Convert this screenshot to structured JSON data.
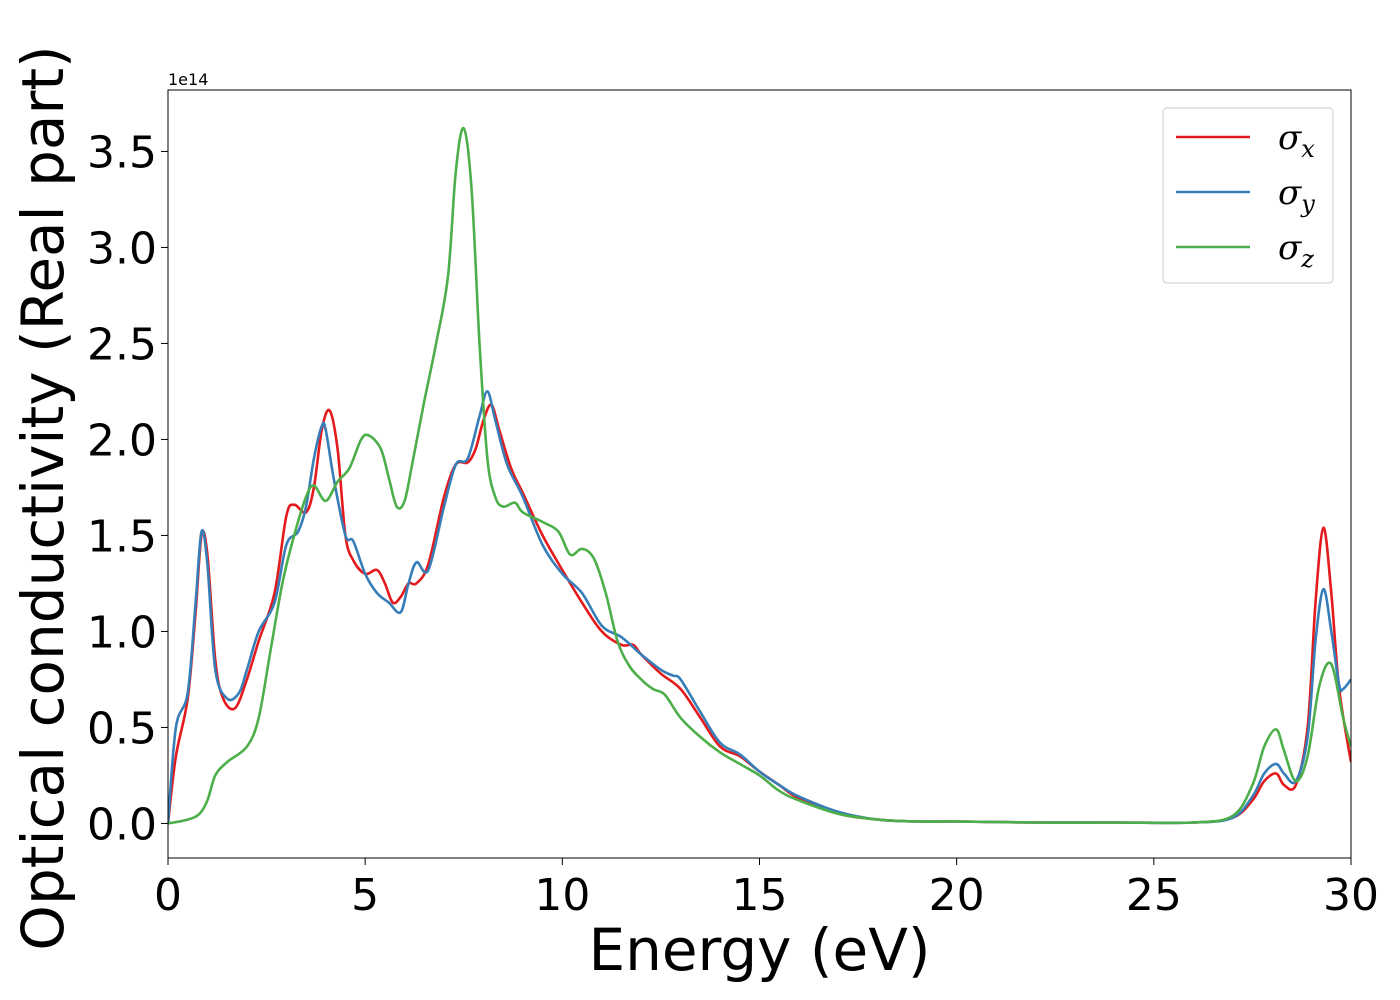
{
  "chart_data": {
    "type": "line",
    "title": "",
    "xlabel": "Energy (eV)",
    "ylabel": "Optical conductivity (Real part)",
    "y_offset_label": "1e14",
    "y_scale_factor": 100000000000000.0,
    "xlim": [
      0,
      30
    ],
    "ylim": [
      -0.18,
      3.82
    ],
    "xticks": [
      0,
      5,
      10,
      15,
      20,
      25,
      30
    ],
    "xtick_labels": [
      "0",
      "5",
      "10",
      "15",
      "20",
      "25",
      "30"
    ],
    "yticks": [
      0.0,
      0.5,
      1.0,
      1.5,
      2.0,
      2.5,
      3.0,
      3.5
    ],
    "ytick_labels": [
      "0.0",
      "0.5",
      "1.0",
      "1.5",
      "2.0",
      "2.5",
      "3.0",
      "3.5"
    ],
    "grid": false,
    "legend_position": "top-right",
    "series": [
      {
        "name": "σx",
        "symbol": "σ",
        "subscript": "x",
        "color": "#e41a1c",
        "x": [
          0,
          0.2,
          0.5,
          0.7,
          0.85,
          1.0,
          1.2,
          1.4,
          1.7,
          2.0,
          2.3,
          2.7,
          3.0,
          3.2,
          3.5,
          3.7,
          3.9,
          4.1,
          4.3,
          4.5,
          4.7,
          5.0,
          5.3,
          5.5,
          5.7,
          5.9,
          6.1,
          6.3,
          6.6,
          7.0,
          7.3,
          7.6,
          7.8,
          8.0,
          8.2,
          8.4,
          8.7,
          9.0,
          9.5,
          10.0,
          10.5,
          11.0,
          11.5,
          11.8,
          12.0,
          12.5,
          13.0,
          13.5,
          14.0,
          14.5,
          15.0,
          15.5,
          16.0,
          17.0,
          18.0,
          19.0,
          20.0,
          22.0,
          24.0,
          26.0,
          27.0,
          27.5,
          27.8,
          28.1,
          28.3,
          28.6,
          28.9,
          29.1,
          29.3,
          29.5,
          29.7,
          30.0
        ],
        "values": [
          0.0,
          0.35,
          0.65,
          1.1,
          1.5,
          1.4,
          0.85,
          0.65,
          0.6,
          0.75,
          0.95,
          1.2,
          1.6,
          1.66,
          1.62,
          1.75,
          2.05,
          2.15,
          1.95,
          1.5,
          1.37,
          1.3,
          1.32,
          1.25,
          1.15,
          1.18,
          1.25,
          1.25,
          1.35,
          1.7,
          1.87,
          1.88,
          1.95,
          2.1,
          2.18,
          2.05,
          1.85,
          1.72,
          1.5,
          1.32,
          1.15,
          1.0,
          0.93,
          0.93,
          0.88,
          0.78,
          0.7,
          0.55,
          0.4,
          0.35,
          0.27,
          0.2,
          0.13,
          0.05,
          0.02,
          0.01,
          0.01,
          0.005,
          0.005,
          0.005,
          0.03,
          0.12,
          0.22,
          0.26,
          0.2,
          0.2,
          0.5,
          1.15,
          1.54,
          1.2,
          0.7,
          0.32
        ]
      },
      {
        "name": "σy",
        "symbol": "σ",
        "subscript": "y",
        "color": "#377eb8",
        "x": [
          0,
          0.2,
          0.5,
          0.7,
          0.85,
          1.0,
          1.2,
          1.5,
          1.8,
          2.0,
          2.3,
          2.7,
          3.0,
          3.3,
          3.5,
          3.7,
          3.9,
          4.0,
          4.2,
          4.5,
          4.7,
          5.0,
          5.3,
          5.6,
          5.9,
          6.1,
          6.3,
          6.6,
          7.0,
          7.3,
          7.6,
          7.9,
          8.1,
          8.3,
          8.6,
          9.0,
          9.5,
          10.0,
          10.5,
          11.0,
          11.5,
          12.0,
          12.5,
          12.8,
          13.0,
          13.5,
          14.0,
          14.5,
          15.0,
          15.5,
          16.0,
          17.0,
          18.0,
          19.0,
          20.0,
          22.0,
          24.0,
          26.0,
          27.0,
          27.5,
          27.8,
          28.1,
          28.3,
          28.6,
          28.9,
          29.1,
          29.3,
          29.5,
          29.7,
          29.8,
          30.0
        ],
        "values": [
          0.0,
          0.5,
          0.68,
          1.15,
          1.52,
          1.35,
          0.8,
          0.65,
          0.68,
          0.8,
          1.0,
          1.15,
          1.45,
          1.52,
          1.65,
          1.9,
          2.07,
          2.05,
          1.8,
          1.5,
          1.47,
          1.3,
          1.2,
          1.15,
          1.1,
          1.25,
          1.36,
          1.32,
          1.65,
          1.87,
          1.9,
          2.12,
          2.25,
          2.1,
          1.87,
          1.7,
          1.45,
          1.3,
          1.2,
          1.03,
          0.97,
          0.88,
          0.8,
          0.77,
          0.75,
          0.58,
          0.42,
          0.36,
          0.27,
          0.2,
          0.14,
          0.06,
          0.02,
          0.01,
          0.01,
          0.005,
          0.005,
          0.005,
          0.03,
          0.14,
          0.26,
          0.31,
          0.26,
          0.22,
          0.45,
          0.95,
          1.22,
          1.0,
          0.72,
          0.7,
          0.75
        ]
      },
      {
        "name": "σz",
        "symbol": "σ",
        "subscript": "z",
        "color": "#4daf4a",
        "x": [
          0,
          0.5,
          0.8,
          1.0,
          1.2,
          1.5,
          2.0,
          2.3,
          2.6,
          2.9,
          3.2,
          3.5,
          3.7,
          4.0,
          4.3,
          4.6,
          4.9,
          5.1,
          5.4,
          5.6,
          5.8,
          6.0,
          6.2,
          6.5,
          6.8,
          7.1,
          7.3,
          7.5,
          7.7,
          7.9,
          8.1,
          8.3,
          8.5,
          8.8,
          9.0,
          9.5,
          9.9,
          10.2,
          10.5,
          10.8,
          11.1,
          11.4,
          11.7,
          12.0,
          12.3,
          12.6,
          13.0,
          13.5,
          14.0,
          14.5,
          15.0,
          15.5,
          16.0,
          17.0,
          18.0,
          19.0,
          20.0,
          22.0,
          24.0,
          26.0,
          27.0,
          27.5,
          27.8,
          28.1,
          28.3,
          28.6,
          28.9,
          29.2,
          29.5,
          29.8,
          30.0
        ],
        "values": [
          0.0,
          0.02,
          0.05,
          0.12,
          0.25,
          0.32,
          0.4,
          0.55,
          0.9,
          1.25,
          1.5,
          1.7,
          1.76,
          1.68,
          1.78,
          1.85,
          2.0,
          2.02,
          1.95,
          1.8,
          1.65,
          1.68,
          1.88,
          2.2,
          2.5,
          2.85,
          3.4,
          3.62,
          3.3,
          2.5,
          1.9,
          1.7,
          1.65,
          1.67,
          1.62,
          1.57,
          1.52,
          1.4,
          1.43,
          1.38,
          1.2,
          0.95,
          0.82,
          0.75,
          0.7,
          0.67,
          0.55,
          0.45,
          0.37,
          0.31,
          0.25,
          0.17,
          0.12,
          0.05,
          0.02,
          0.01,
          0.01,
          0.005,
          0.005,
          0.005,
          0.04,
          0.2,
          0.4,
          0.49,
          0.38,
          0.22,
          0.35,
          0.72,
          0.83,
          0.55,
          0.4
        ]
      }
    ]
  }
}
